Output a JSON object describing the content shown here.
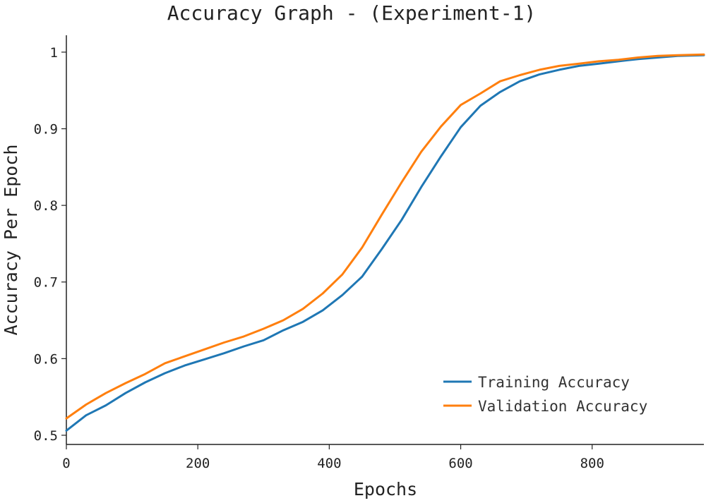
{
  "chart_data": {
    "type": "line",
    "title": "Accuracy Graph - (Experiment-1)",
    "xlabel": "Epochs",
    "ylabel": "Accuracy Per Epoch",
    "xlim": [
      0,
      970
    ],
    "ylim": [
      0.488,
      1.022
    ],
    "xticks": [
      0,
      200,
      400,
      600,
      800
    ],
    "xtick_labels": [
      "0",
      "200",
      "400",
      "600",
      "800"
    ],
    "yticks": [
      0.5,
      0.6,
      0.7,
      0.8,
      0.9,
      1.0
    ],
    "ytick_labels": [
      "0.5",
      "0.6",
      "0.7",
      "0.8",
      "0.9",
      "1"
    ],
    "grid": false,
    "legend_position": "bottom-right",
    "x": [
      0,
      30,
      60,
      90,
      120,
      150,
      180,
      210,
      240,
      270,
      300,
      330,
      360,
      390,
      420,
      450,
      480,
      510,
      540,
      570,
      600,
      630,
      660,
      690,
      720,
      750,
      780,
      810,
      840,
      870,
      900,
      930,
      970
    ],
    "series": [
      {
        "name": "Training Accuracy",
        "color": "#1f77b4",
        "values": [
          0.506,
          0.526,
          0.539,
          0.555,
          0.569,
          0.581,
          0.591,
          0.599,
          0.607,
          0.616,
          0.624,
          0.637,
          0.648,
          0.663,
          0.683,
          0.707,
          0.743,
          0.781,
          0.824,
          0.864,
          0.902,
          0.93,
          0.948,
          0.962,
          0.971,
          0.977,
          0.982,
          0.985,
          0.988,
          0.991,
          0.993,
          0.995,
          0.996
        ]
      },
      {
        "name": "Validation Accuracy",
        "color": "#ff7f0e",
        "values": [
          0.522,
          0.54,
          0.555,
          0.568,
          0.58,
          0.594,
          0.603,
          0.612,
          0.621,
          0.629,
          0.639,
          0.65,
          0.665,
          0.685,
          0.71,
          0.745,
          0.788,
          0.83,
          0.87,
          0.903,
          0.931,
          0.946,
          0.962,
          0.97,
          0.977,
          0.982,
          0.985,
          0.988,
          0.99,
          0.993,
          0.995,
          0.996,
          0.997
        ]
      }
    ]
  }
}
